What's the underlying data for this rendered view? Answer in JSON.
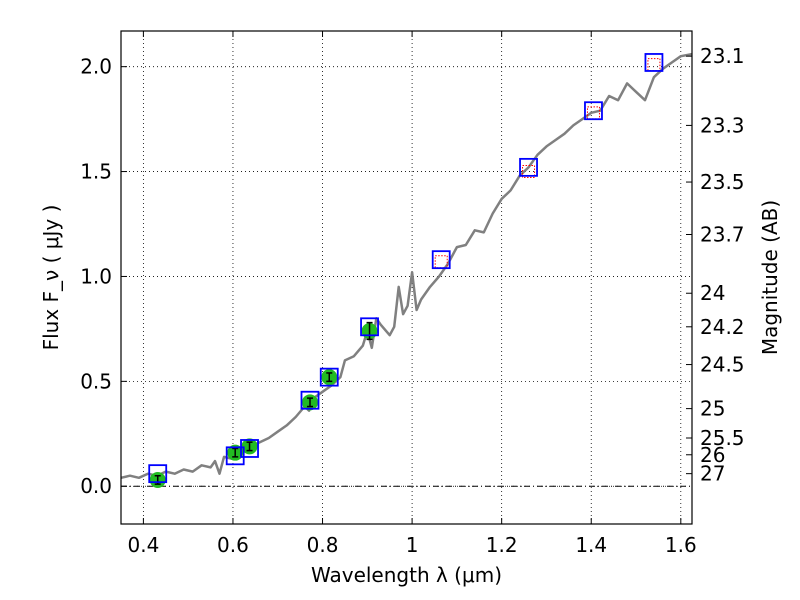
{
  "chart_data": {
    "type": "scatter",
    "title": "",
    "xlabel": "Wavelength  λ (μm)",
    "ylabel": "Flux  F_ν  ( μJy )",
    "y2label": "Magnitude (AB)",
    "xlim": [
      0.35,
      1.625
    ],
    "ylim": [
      -0.18,
      2.17
    ],
    "grid": true,
    "x_ticks": [
      0.4,
      0.6,
      0.8,
      1.0,
      1.2,
      1.4,
      1.6
    ],
    "x_tick_labels": [
      "0.4",
      "0.6",
      "0.8",
      "1",
      "1.2",
      "1.4",
      "1.6"
    ],
    "y_ticks": [
      0.0,
      0.5,
      1.0,
      1.5,
      2.0
    ],
    "y_tick_labels": [
      "0.0",
      "0.5",
      "1.0",
      "1.5",
      "2.0"
    ],
    "y2_ticks": [
      {
        "flux": 2.05,
        "label": "23.1"
      },
      {
        "flux": 1.72,
        "label": "23.3"
      },
      {
        "flux": 1.45,
        "label": "23.5"
      },
      {
        "flux": 1.2,
        "label": "23.7"
      },
      {
        "flux": 0.92,
        "label": "24"
      },
      {
        "flux": 0.76,
        "label": "24.2"
      },
      {
        "flux": 0.58,
        "label": "24.5"
      },
      {
        "flux": 0.37,
        "label": "25"
      },
      {
        "flux": 0.23,
        "label": "25.5"
      },
      {
        "flux": 0.15,
        "label": "26"
      },
      {
        "flux": 0.06,
        "label": "27"
      }
    ],
    "series": [
      {
        "name": "model spectrum",
        "style": "line",
        "color": "#808080",
        "x": [
          0.35,
          0.37,
          0.39,
          0.41,
          0.43,
          0.45,
          0.47,
          0.49,
          0.51,
          0.53,
          0.55,
          0.56,
          0.57,
          0.58,
          0.6,
          0.62,
          0.64,
          0.66,
          0.68,
          0.7,
          0.72,
          0.74,
          0.76,
          0.77,
          0.78,
          0.8,
          0.82,
          0.84,
          0.85,
          0.87,
          0.89,
          0.9,
          0.91,
          0.92,
          0.93,
          0.95,
          0.96,
          0.97,
          0.98,
          0.99,
          1.0,
          1.01,
          1.02,
          1.04,
          1.06,
          1.08,
          1.1,
          1.12,
          1.14,
          1.16,
          1.18,
          1.2,
          1.22,
          1.24,
          1.26,
          1.28,
          1.3,
          1.32,
          1.34,
          1.36,
          1.38,
          1.4,
          1.42,
          1.44,
          1.46,
          1.48,
          1.5,
          1.52,
          1.54,
          1.56,
          1.58,
          1.6,
          1.625
        ],
        "y": [
          0.04,
          0.05,
          0.04,
          0.06,
          0.05,
          0.07,
          0.06,
          0.08,
          0.07,
          0.1,
          0.09,
          0.12,
          0.06,
          0.14,
          0.13,
          0.17,
          0.19,
          0.21,
          0.23,
          0.26,
          0.29,
          0.33,
          0.38,
          0.36,
          0.42,
          0.45,
          0.48,
          0.52,
          0.6,
          0.62,
          0.67,
          0.74,
          0.66,
          0.8,
          0.77,
          0.72,
          0.76,
          0.95,
          0.82,
          0.86,
          1.02,
          0.84,
          0.89,
          0.95,
          1.0,
          1.06,
          1.14,
          1.15,
          1.22,
          1.21,
          1.3,
          1.37,
          1.41,
          1.48,
          1.52,
          1.58,
          1.62,
          1.65,
          1.68,
          1.72,
          1.75,
          1.78,
          1.79,
          1.86,
          1.84,
          1.92,
          1.88,
          1.84,
          1.95,
          1.99,
          2.02,
          2.05,
          2.06
        ]
      },
      {
        "name": "model photometry",
        "style": "open square",
        "color": "#0000ff",
        "x": [
          0.432,
          0.605,
          0.637,
          0.772,
          0.815,
          0.905,
          1.065,
          1.26,
          1.405,
          1.54
        ],
        "y": [
          0.06,
          0.145,
          0.18,
          0.41,
          0.52,
          0.76,
          1.08,
          1.52,
          1.79,
          2.02
        ]
      },
      {
        "name": "observed photometry",
        "style": "filled circle with error bars",
        "color": "#22bb22",
        "x": [
          0.432,
          0.605,
          0.637,
          0.772,
          0.815,
          0.905
        ],
        "y": [
          0.03,
          0.16,
          0.19,
          0.4,
          0.52,
          0.74
        ],
        "yerr": [
          0.02,
          0.02,
          0.02,
          0.02,
          0.02,
          0.04
        ]
      },
      {
        "name": "upper limits",
        "style": "dotted red square",
        "color": "#ff0000",
        "x": [
          1.065,
          1.26,
          1.405,
          1.54
        ],
        "y": [
          1.07,
          1.5,
          1.78,
          2.01
        ]
      }
    ]
  }
}
